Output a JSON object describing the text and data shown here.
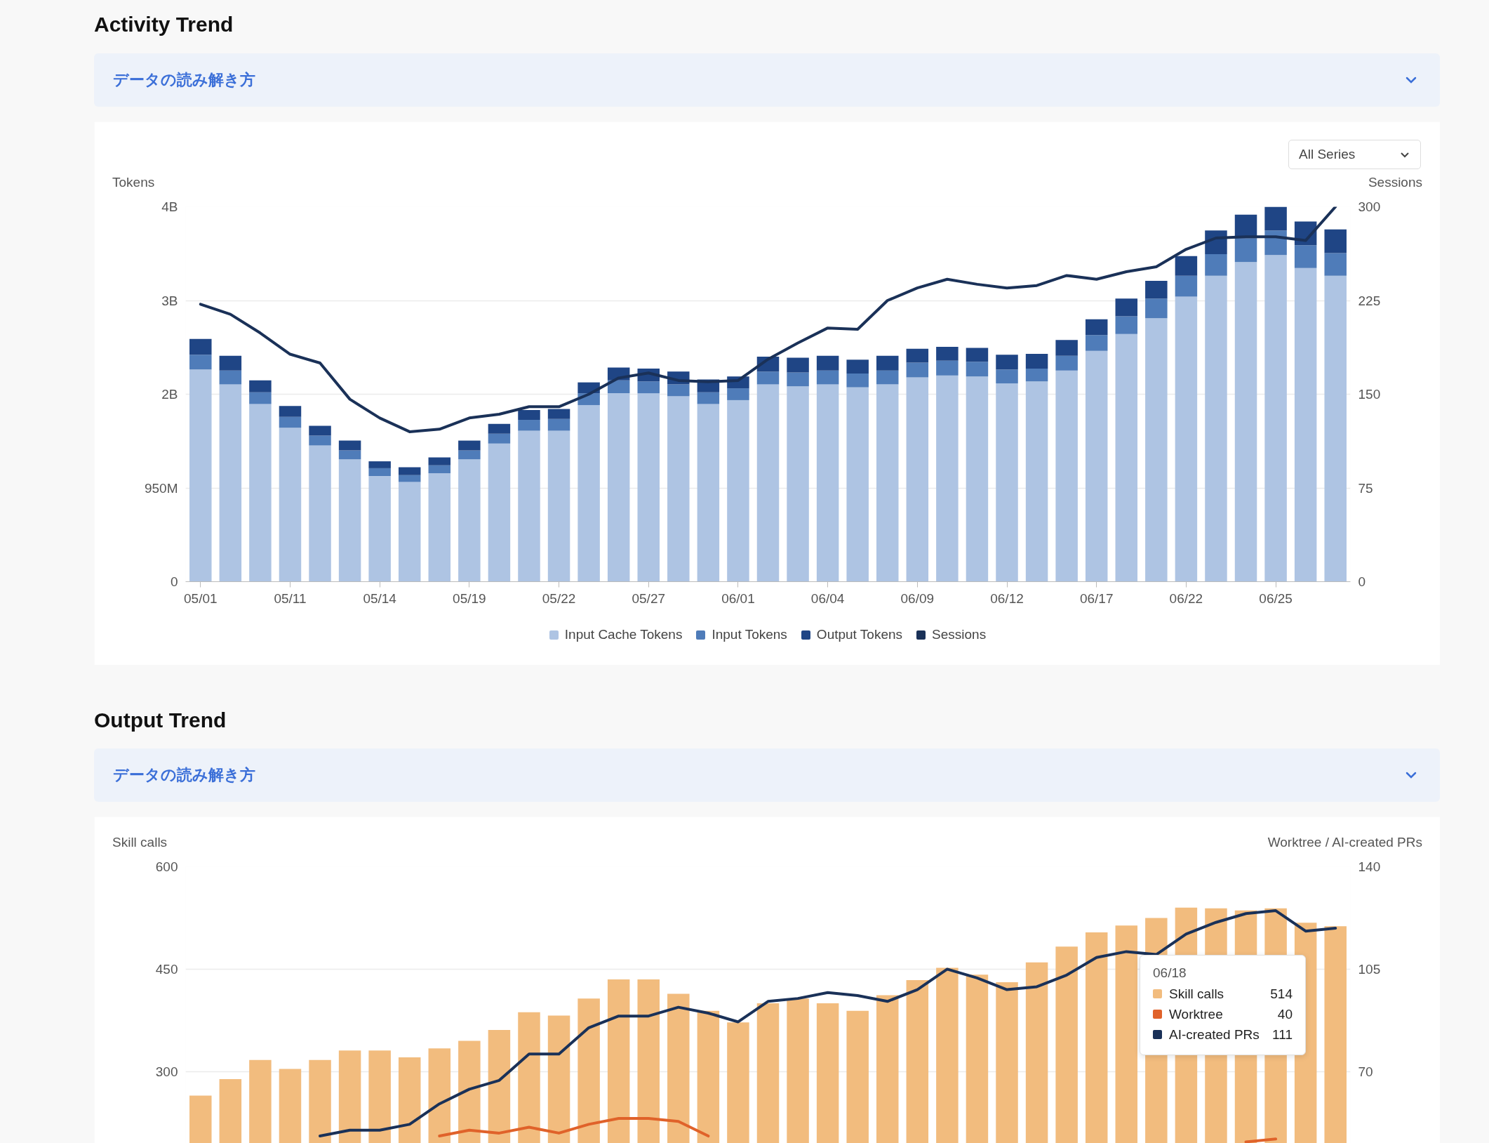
{
  "chart_data": [
    {
      "type": "bar",
      "title": "Activity Trend",
      "subtitle": "データの読み解き方",
      "ylabel": "Tokens",
      "y2label": "Sessions",
      "annotations": [
        "All Series"
      ],
      "categories": [
        "05/01",
        null,
        null,
        "05/11",
        null,
        null,
        "05/14",
        null,
        null,
        "05/19",
        null,
        null,
        "05/22",
        null,
        null,
        "05/27",
        null,
        null,
        "06/01",
        null,
        null,
        "06/04",
        null,
        null,
        "06/09",
        null,
        null,
        "06/12",
        null,
        null,
        "06/17",
        null,
        null,
        "06/22",
        null,
        null,
        "06/25",
        null,
        null
      ],
      "stacked": true,
      "grid": "y",
      "legend": "bottom",
      "ylim": [
        0,
        3800000000.0
      ],
      "yticks": [
        0,
        {
          "value": 950000000.0,
          "label": "950M"
        },
        {
          "value": 1900000000.0,
          "label": "2B"
        },
        {
          "value": 2850000000.0,
          "label": "3B"
        },
        {
          "value": 3800000000.0,
          "label": "4B"
        }
      ],
      "y2lim": [
        0,
        300
      ],
      "y2ticks": [
        0,
        75,
        150,
        225,
        300
      ],
      "series": [
        {
          "name": "Input Cache Tokens",
          "color": "#aec4e3",
          "values": [
            2150000000.0,
            2000000000.0,
            1800000000.0,
            1560000000.0,
            1380000000.0,
            1240000000.0,
            1070000000.0,
            1010000000.0,
            1100000000.0,
            1240000000.0,
            1400000000.0,
            1530000000.0,
            1530000000.0,
            1790000000.0,
            1910000000.0,
            1910000000.0,
            1880000000.0,
            1800000000.0,
            1840000000.0,
            2000000000.0,
            1980000000.0,
            2000000000.0,
            1970000000.0,
            2000000000.0,
            2070000000.0,
            2090000000.0,
            2080000000.0,
            2010000000.0,
            2030000000.0,
            2140000000.0,
            2340000000.0,
            2510000000.0,
            2670000000.0,
            2890000000.0,
            3100000000.0,
            3240000000.0,
            3310000000.0,
            3180000000.0,
            3100000000.0
          ]
        },
        {
          "name": "Input Tokens",
          "color": "#4f7cb9",
          "values": [
            150000000.0,
            140000000.0,
            120000000.0,
            110000000.0,
            100000000.0,
            90000000.0,
            80000000.0,
            70000000.0,
            80000000.0,
            90000000.0,
            100000000.0,
            110000000.0,
            120000000.0,
            120000000.0,
            130000000.0,
            120000000.0,
            120000000.0,
            120000000.0,
            120000000.0,
            130000000.0,
            140000000.0,
            140000000.0,
            140000000.0,
            140000000.0,
            150000000.0,
            150000000.0,
            150000000.0,
            140000000.0,
            130000000.0,
            150000000.0,
            160000000.0,
            180000000.0,
            200000000.0,
            210000000.0,
            220000000.0,
            240000000.0,
            250000000.0,
            230000000.0,
            230000000.0
          ]
        },
        {
          "name": "Output Tokens",
          "color": "#1f4585",
          "values": [
            160000000.0,
            150000000.0,
            120000000.0,
            110000000.0,
            100000000.0,
            100000000.0,
            70000000.0,
            80000000.0,
            80000000.0,
            100000000.0,
            100000000.0,
            100000000.0,
            100000000.0,
            110000000.0,
            130000000.0,
            130000000.0,
            130000000.0,
            130000000.0,
            120000000.0,
            150000000.0,
            150000000.0,
            150000000.0,
            140000000.0,
            150000000.0,
            140000000.0,
            140000000.0,
            140000000.0,
            150000000.0,
            150000000.0,
            160000000.0,
            160000000.0,
            180000000.0,
            180000000.0,
            200000000.0,
            240000000.0,
            240000000.0,
            240000000.0,
            240000000.0,
            240000000.0
          ]
        },
        {
          "name": "Sessions",
          "type": "line",
          "axis": "y2",
          "color": "#1a3158",
          "values": [
            222,
            214,
            199,
            182,
            175,
            146,
            131,
            120,
            122,
            131,
            134,
            140,
            140,
            150,
            163,
            167,
            161,
            160,
            161,
            178,
            191,
            203,
            202,
            225,
            235,
            242,
            238,
            235,
            237,
            245,
            242,
            248,
            252,
            266,
            275,
            276,
            276,
            273,
            300
          ]
        }
      ]
    },
    {
      "type": "bar",
      "title": "Output Trend",
      "subtitle": "データの読み解き方",
      "ylabel": "Skill calls",
      "y2label": "Worktree / AI-created PRs",
      "annotations": [
        "06/18",
        "514",
        "40",
        "111"
      ],
      "categories": [
        null,
        null,
        null,
        null,
        null,
        null,
        null,
        null,
        null,
        null,
        null,
        null,
        null,
        null,
        null,
        null,
        null,
        null,
        null,
        null,
        null,
        null,
        null,
        null,
        null,
        null,
        null,
        null,
        null,
        null,
        null,
        null,
        null,
        null,
        null,
        null,
        null,
        null,
        null
      ],
      "tick_labels": "y",
      "grid": "y",
      "legend": "right",
      "ylim": [
        195,
        600
      ],
      "yticks": [
        300,
        450,
        600
      ],
      "y2lim": [
        45.5,
        140
      ],
      "y2ticks": [
        70,
        105,
        140
      ],
      "series": [
        {
          "name": "Skill calls",
          "color": "#f2bc7e",
          "values": [
            265,
            289,
            317,
            304,
            317,
            331,
            331,
            321,
            334,
            345,
            361,
            387,
            382,
            407,
            435,
            435,
            414,
            389,
            372,
            400,
            407,
            400,
            389,
            412,
            434,
            452,
            442,
            431,
            460,
            483,
            504,
            514,
            525,
            540,
            539,
            536,
            539,
            518,
            513
          ]
        },
        {
          "name": "Worktree",
          "type": "line",
          "axis": "y2",
          "color": "#e0622a",
          "values": [
            null,
            null,
            null,
            null,
            null,
            null,
            null,
            null,
            48,
            50,
            49,
            51,
            49,
            52,
            54,
            54,
            53,
            48,
            null,
            null,
            null,
            null,
            null,
            null,
            null,
            null,
            null,
            null,
            null,
            null,
            null,
            null,
            null,
            null,
            null,
            46,
            47,
            null,
            null
          ]
        },
        {
          "name": "AI-created PRs",
          "type": "line",
          "axis": "y2",
          "color": "#1a3158",
          "values": [
            null,
            null,
            null,
            null,
            48,
            50,
            50,
            52,
            59,
            64,
            67,
            76,
            76,
            85,
            89,
            89,
            92,
            90,
            87,
            94,
            95,
            97,
            96,
            94,
            98,
            105,
            102,
            98,
            99,
            103,
            109,
            111,
            110,
            117,
            121,
            124,
            125,
            118,
            119
          ]
        }
      ]
    }
  ]
}
